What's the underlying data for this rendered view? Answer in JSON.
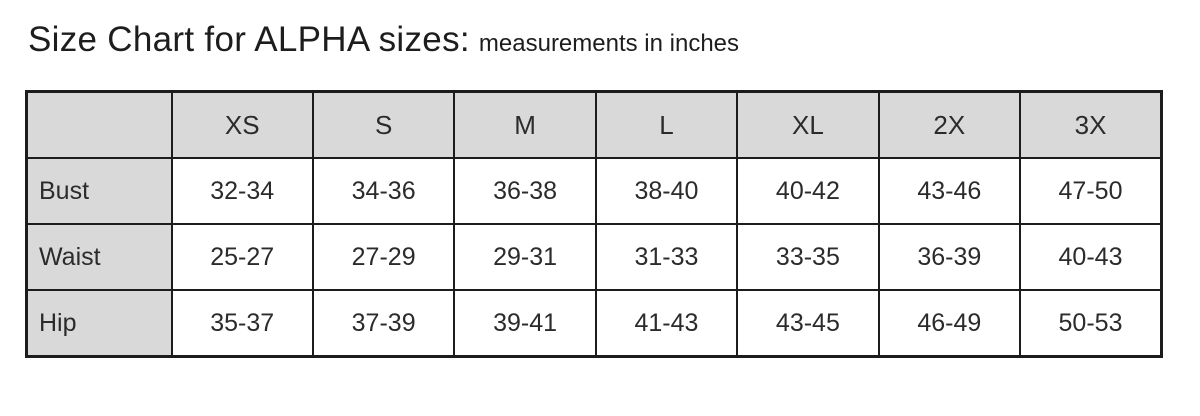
{
  "title": {
    "main": "Size Chart for ALPHA sizes:",
    "sub": "measurements in inches"
  },
  "chart_data": {
    "type": "table",
    "title": "Size Chart for ALPHA sizes",
    "subtitle": "measurements in inches",
    "unit": "inches",
    "columns": [
      "",
      "XS",
      "S",
      "M",
      "L",
      "XL",
      "2X",
      "3X"
    ],
    "rows": [
      {
        "label": "Bust",
        "values": [
          "32-34",
          "34-36",
          "36-38",
          "38-40",
          "40-42",
          "43-46",
          "47-50"
        ]
      },
      {
        "label": "Waist",
        "values": [
          "25-27",
          "27-29",
          "29-31",
          "31-33",
          "33-35",
          "36-39",
          "40-43"
        ]
      },
      {
        "label": "Hip",
        "values": [
          "35-37",
          "37-39",
          "39-41",
          "41-43",
          "43-45",
          "46-49",
          "50-53"
        ]
      }
    ]
  },
  "colors": {
    "header_bg": "#d9d9d9",
    "cell_bg": "#ffffff",
    "border": "#1c1c1c",
    "text": "#2b2b2b"
  }
}
